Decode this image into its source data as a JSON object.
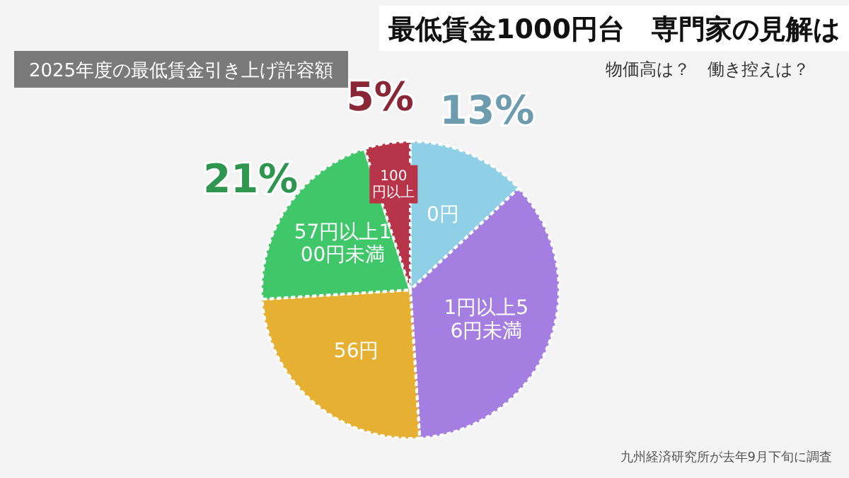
{
  "chart_data": {
    "type": "pie",
    "title": "最低賃金1000円台　専門家の見解は",
    "subtitle": "物価高は？　働き控えは？",
    "annotations": [
      "2025年度の最低賃金引き上げ許容額",
      "九州経済研究所が去年9月下旬に調査"
    ],
    "categories": [
      "0円",
      "1円以上56円未満",
      "56円",
      "57円以上100円未満",
      "100円以上"
    ],
    "values": [
      13,
      36,
      25,
      21,
      5
    ],
    "colors": [
      "#8fd0e6",
      "#a47ee0",
      "#e6b032",
      "#3fc76a",
      "#b83448"
    ],
    "value_labels": [
      "13%",
      null,
      null,
      "21%",
      "5%"
    ]
  }
}
